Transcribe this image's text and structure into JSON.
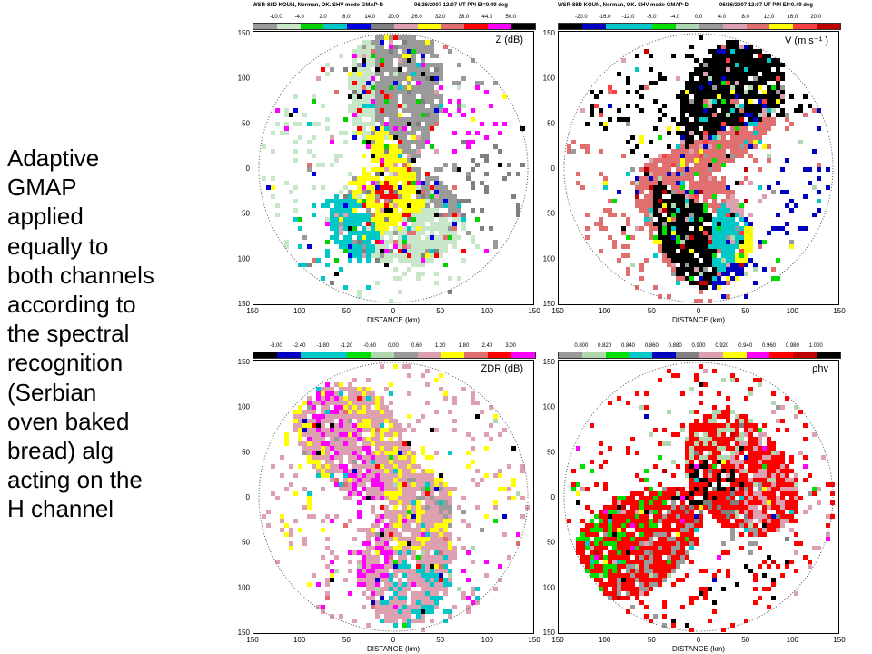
{
  "caption": "Adaptive\nGMAP\napplied\nequally to\nboth channels\naccording to\nthe spectral\nrecognition\n(Serbian\noven baked\nbread) alg\nacting on the\nH channel",
  "panels": [
    {
      "id": "z",
      "header_left": "WSR-88D  KOUN, Norman, OK.  SHV mode    GMAP-D",
      "header_right": "06/26/2007  12:07 UT  PPI   El=0.49 deg",
      "label": "Z  (dB)",
      "ticks": [
        "-10.0",
        "-4.0",
        "2.0",
        "8.0",
        "14.0",
        "20.0",
        "26.0",
        "32.0",
        "38.0",
        "44.0",
        "50.0"
      ],
      "colors": [
        "#9a9a9a",
        "#c8e6c8",
        "#00d000",
        "#00c8c8",
        "#0000e0",
        "#808080",
        "#dda0b0",
        "#ffff00",
        "#e07070",
        "#ff0000",
        "#ff00ff",
        "#000000"
      ],
      "seed": 11
    },
    {
      "id": "v",
      "header_left": "WSR-88D  KOUN, Norman, OK.  SHV mode    GMAP-D",
      "header_right": "06/26/2007  12:07 UT  PPI   El=0.49 deg",
      "label": "V (m s⁻¹ )",
      "ticks": [
        "-20.0",
        "-16.0",
        "-12.0",
        "-8.0",
        "-4.0",
        "0.0",
        "4.0",
        "8.0",
        "12.0",
        "16.0",
        "20.0"
      ],
      "colors": [
        "#000000",
        "#0000c0",
        "#00c8c8",
        "#00c8c8",
        "#00e000",
        "#b0d8b0",
        "#9a9a9a",
        "#dda0b0",
        "#e07070",
        "#ffff00",
        "#ff4040",
        "#c00000"
      ],
      "seed": 23
    },
    {
      "id": "zdr",
      "header_left": "",
      "header_right": "",
      "label": "ZDR (dB)",
      "ticks": [
        "-3.00",
        "-2.40",
        "-1.80",
        "-1.20",
        "-0.60",
        "0.00",
        "0.60",
        "1.20",
        "1.80",
        "2.40",
        "3.00"
      ],
      "colors": [
        "#000000",
        "#0000c0",
        "#00c8c8",
        "#00c8c8",
        "#00e000",
        "#b0d8b0",
        "#9a9a9a",
        "#dda0b0",
        "#ffff00",
        "#e07070",
        "#ff0000",
        "#ff00ff"
      ],
      "seed": 37
    },
    {
      "id": "rhohv",
      "header_left": "",
      "header_right": "",
      "label": "ρhv",
      "ticks": [
        "0.800",
        "0.820",
        "0.840",
        "0.860",
        "0.880",
        "0.900",
        "0.920",
        "0.940",
        "0.960",
        "0.980",
        "1.000"
      ],
      "colors": [
        "#9a9a9a",
        "#b0d8b0",
        "#00e000",
        "#00c8c8",
        "#0000c0",
        "#808080",
        "#dda0b0",
        "#ffff00",
        "#ff00ff",
        "#ff0000",
        "#c00000",
        "#000000"
      ],
      "seed": 53
    }
  ],
  "axis": {
    "y_ticks": [
      "150",
      "100",
      "50",
      "0",
      "50",
      "100",
      "150"
    ],
    "x_ticks": [
      "150",
      "100",
      "50",
      "0",
      "50",
      "100",
      "150"
    ],
    "x_label": "DISTANCE (km)",
    "x_unit": "(km)"
  }
}
